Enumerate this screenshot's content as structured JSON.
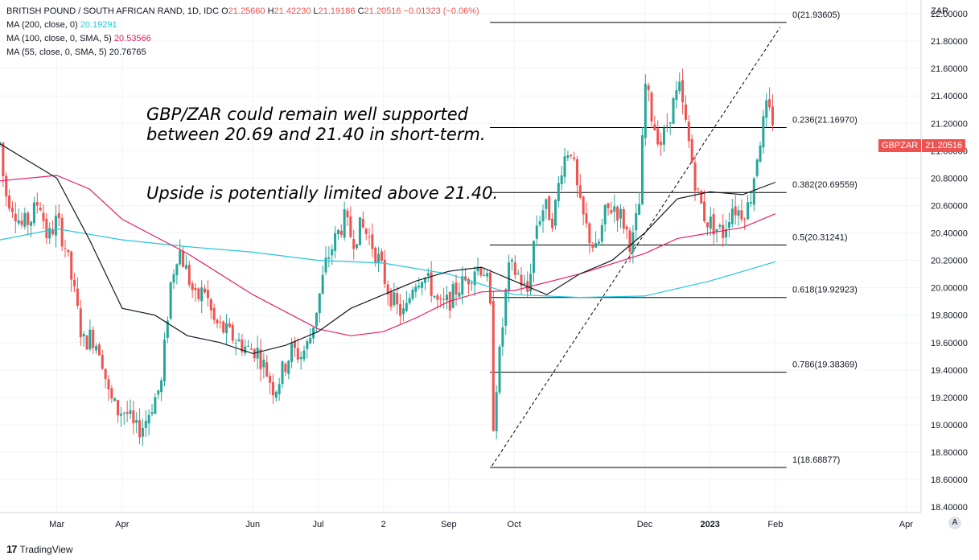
{
  "legend": {
    "symbol": "BRITISH POUND / SOUTH AFRICAN RAND, 1D, IDC",
    "o_label": "O",
    "o_value": "21.25660",
    "h_label": "H",
    "h_value": "21.42230",
    "l_label": "L",
    "l_value": "21.19186",
    "c_label": "C",
    "c_value": "21.20516",
    "change": "−0.01323 (−0.06%)",
    "ma200_label": "MA (200, close, 0)",
    "ma200_value": "20.19291",
    "ma100_label": "MA (100, close, 0, SMA, 5)",
    "ma100_value": "20.53566",
    "ma55_label": "MA (55, close, 0, SMA, 5)",
    "ma55_value": "20.76765"
  },
  "annotation": {
    "line1": "GBP/ZAR could remain well supported",
    "line2": "between 20.69 and 21.40 in short-term.",
    "line3": "Upside is potentially limited above 21.40."
  },
  "price_tag": {
    "symbol": "GBPZAR",
    "value": "21.20516"
  },
  "brand": {
    "logo": "17",
    "name": "TradingView"
  },
  "auto_label": "A",
  "colors": {
    "up": "#26a69a",
    "down": "#ef5350",
    "ma200": "#26c6da",
    "ma100": "#e91e63",
    "ma55": "#131722"
  },
  "chart_data": {
    "type": "candlestick",
    "currency": "ZAR",
    "y_ticks": [
      "22.00000",
      "21.80000",
      "21.60000",
      "21.40000",
      "21.20000",
      "21.00000",
      "20.80000",
      "20.60000",
      "20.40000",
      "20.20000",
      "20.00000",
      "19.80000",
      "19.60000",
      "19.40000",
      "19.20000",
      "19.00000",
      "18.80000",
      "18.60000",
      "18.40000"
    ],
    "x_ticks": [
      {
        "label": "Mar",
        "m": 2.0
      },
      {
        "label": "Apr",
        "m": 3.0
      },
      {
        "label": "Jun",
        "m": 5.0
      },
      {
        "label": "Jul",
        "m": 6.0
      },
      {
        "label": "2",
        "m": 7.0
      },
      {
        "label": "Sep",
        "m": 8.0
      },
      {
        "label": "Oct",
        "m": 9.0
      },
      {
        "label": "Dec",
        "m": 11.0
      },
      {
        "label": "2023",
        "m": 12.0
      },
      {
        "label": "Feb",
        "m": 13.0
      },
      {
        "label": "Apr",
        "m": 15.0
      }
    ],
    "x_range_months": [
      1.13,
      15.23
    ],
    "ylim": [
      18.36,
      22.1
    ],
    "fibonacci": [
      {
        "label": "0(21.93605)",
        "value": 21.93605
      },
      {
        "label": "0.236(21.16970)",
        "value": 21.1697
      },
      {
        "label": "0.382(20.69559)",
        "value": 20.69559
      },
      {
        "label": "0.5(20.31241)",
        "value": 20.31241
      },
      {
        "label": "0.618(19.92923)",
        "value": 19.92923
      },
      {
        "label": "0.786(19.38369)",
        "value": 19.38369
      },
      {
        "label": "1(18.68877)",
        "value": 18.68877
      }
    ],
    "fib_range_months": [
      8.63,
      13.17
    ],
    "trendline": {
      "from": {
        "m": 8.66,
        "v": 18.7
      },
      "to": {
        "m": 13.07,
        "v": 21.9
      }
    },
    "price_path": [
      [
        1.13,
        21.05
      ],
      [
        1.2,
        20.7
      ],
      [
        1.33,
        20.6
      ],
      [
        1.46,
        20.45
      ],
      [
        1.6,
        20.5
      ],
      [
        1.73,
        20.65
      ],
      [
        1.86,
        20.35
      ],
      [
        2.0,
        20.5
      ],
      [
        2.13,
        20.3
      ],
      [
        2.27,
        19.95
      ],
      [
        2.4,
        19.6
      ],
      [
        2.53,
        19.65
      ],
      [
        2.67,
        19.55
      ],
      [
        2.8,
        19.2
      ],
      [
        2.93,
        19.1
      ],
      [
        3.06,
        19.1
      ],
      [
        3.2,
        18.95
      ],
      [
        3.33,
        19.0
      ],
      [
        3.46,
        19.15
      ],
      [
        3.6,
        19.3
      ],
      [
        3.73,
        20.0
      ],
      [
        3.86,
        20.3
      ],
      [
        4.0,
        20.1
      ],
      [
        4.13,
        19.9
      ],
      [
        4.26,
        20.0
      ],
      [
        4.4,
        19.75
      ],
      [
        4.53,
        19.7
      ],
      [
        4.66,
        19.65
      ],
      [
        4.8,
        19.6
      ],
      [
        4.93,
        19.55
      ],
      [
        5.06,
        19.55
      ],
      [
        5.2,
        19.4
      ],
      [
        5.33,
        19.25
      ],
      [
        5.46,
        19.4
      ],
      [
        5.6,
        19.55
      ],
      [
        5.73,
        19.5
      ],
      [
        5.86,
        19.6
      ],
      [
        6.0,
        19.9
      ],
      [
        6.13,
        20.2
      ],
      [
        6.26,
        20.35
      ],
      [
        6.4,
        20.5
      ],
      [
        6.53,
        20.35
      ],
      [
        6.66,
        20.45
      ],
      [
        6.8,
        20.35
      ],
      [
        6.93,
        20.2
      ],
      [
        7.06,
        20.0
      ],
      [
        7.2,
        19.85
      ],
      [
        7.33,
        19.8
      ],
      [
        7.46,
        20.05
      ],
      [
        7.6,
        20.1
      ],
      [
        7.73,
        20.0
      ],
      [
        7.86,
        19.85
      ],
      [
        8.0,
        19.9
      ],
      [
        8.13,
        20.0
      ],
      [
        8.26,
        20.05
      ],
      [
        8.4,
        20.15
      ],
      [
        8.53,
        20.15
      ],
      [
        8.63,
        19.95
      ],
      [
        8.67,
        18.95
      ],
      [
        8.73,
        19.3
      ],
      [
        8.8,
        19.6
      ],
      [
        8.87,
        19.95
      ],
      [
        8.93,
        20.15
      ],
      [
        9.06,
        20.1
      ],
      [
        9.2,
        19.95
      ],
      [
        9.33,
        20.45
      ],
      [
        9.46,
        20.6
      ],
      [
        9.6,
        20.5
      ],
      [
        9.73,
        20.9
      ],
      [
        9.86,
        21.05
      ],
      [
        10.0,
        20.6
      ],
      [
        10.13,
        20.4
      ],
      [
        10.26,
        20.25
      ],
      [
        10.4,
        20.55
      ],
      [
        10.53,
        20.6
      ],
      [
        10.66,
        20.5
      ],
      [
        10.8,
        20.3
      ],
      [
        10.93,
        20.65
      ],
      [
        11.0,
        21.5
      ],
      [
        11.13,
        21.2
      ],
      [
        11.26,
        21.05
      ],
      [
        11.4,
        21.3
      ],
      [
        11.53,
        21.45
      ],
      [
        11.66,
        21.1
      ],
      [
        11.8,
        20.7
      ],
      [
        11.93,
        20.5
      ],
      [
        12.06,
        20.45
      ],
      [
        12.2,
        20.4
      ],
      [
        12.33,
        20.6
      ],
      [
        12.46,
        20.55
      ],
      [
        12.6,
        20.6
      ],
      [
        12.73,
        21.0
      ],
      [
        12.86,
        21.3
      ],
      [
        13.0,
        21.2
      ]
    ],
    "ma200": [
      [
        1.13,
        20.35
      ],
      [
        2.0,
        20.43
      ],
      [
        3.0,
        20.35
      ],
      [
        4.0,
        20.3
      ],
      [
        5.0,
        20.26
      ],
      [
        6.0,
        20.2
      ],
      [
        7.0,
        20.18
      ],
      [
        8.0,
        20.1
      ],
      [
        9.0,
        19.95
      ],
      [
        10.0,
        19.93
      ],
      [
        11.0,
        19.94
      ],
      [
        12.0,
        20.05
      ],
      [
        13.0,
        20.19
      ]
    ],
    "ma100": [
      [
        1.13,
        20.78
      ],
      [
        2.0,
        20.82
      ],
      [
        2.5,
        20.72
      ],
      [
        3.0,
        20.5
      ],
      [
        4.0,
        20.25
      ],
      [
        5.0,
        19.95
      ],
      [
        6.0,
        19.7
      ],
      [
        6.5,
        19.65
      ],
      [
        7.0,
        19.68
      ],
      [
        7.5,
        19.78
      ],
      [
        8.0,
        19.9
      ],
      [
        8.5,
        19.97
      ],
      [
        9.0,
        19.98
      ],
      [
        10.0,
        20.1
      ],
      [
        11.0,
        20.25
      ],
      [
        11.5,
        20.36
      ],
      [
        12.0,
        20.4
      ],
      [
        12.5,
        20.44
      ],
      [
        13.0,
        20.54
      ]
    ],
    "ma55": [
      [
        1.13,
        21.05
      ],
      [
        2.0,
        20.8
      ],
      [
        2.5,
        20.35
      ],
      [
        3.0,
        19.85
      ],
      [
        3.5,
        19.8
      ],
      [
        4.0,
        19.65
      ],
      [
        4.5,
        19.6
      ],
      [
        5.0,
        19.52
      ],
      [
        5.5,
        19.58
      ],
      [
        6.0,
        19.68
      ],
      [
        6.5,
        19.85
      ],
      [
        7.0,
        19.95
      ],
      [
        7.5,
        20.05
      ],
      [
        8.0,
        20.12
      ],
      [
        8.5,
        20.15
      ],
      [
        9.0,
        20.05
      ],
      [
        9.5,
        19.95
      ],
      [
        10.0,
        20.1
      ],
      [
        10.5,
        20.2
      ],
      [
        11.0,
        20.4
      ],
      [
        11.5,
        20.65
      ],
      [
        12.0,
        20.7
      ],
      [
        12.5,
        20.68
      ],
      [
        13.0,
        20.77
      ]
    ]
  }
}
